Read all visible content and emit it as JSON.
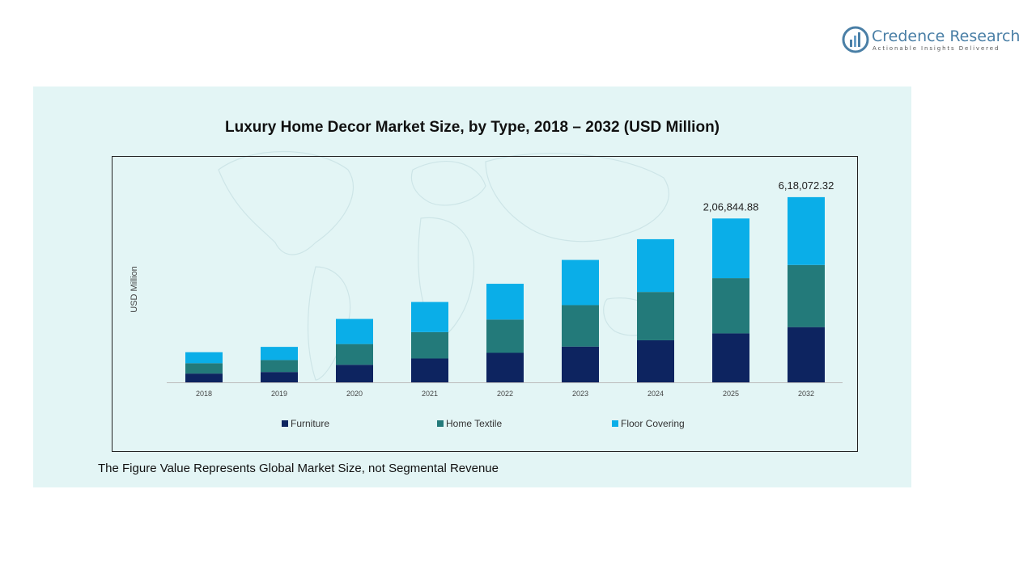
{
  "brand": {
    "name": "Credence Research",
    "tagline": "Actionable Insights Delivered",
    "color": "#4a7fa6"
  },
  "footnote": "The Figure Value Represents Global Market Size, not Segmental Revenue",
  "colors": {
    "panel_bg": "#e3f5f5",
    "furniture": "#0d2460",
    "home_textile": "#237a7a",
    "floor_covering": "#0aaee8"
  },
  "chart_data": {
    "type": "bar",
    "stacked": true,
    "title": "Luxury Home Decor Market Size, by Type, 2018 – 2032 (USD Million)",
    "xlabel": "",
    "ylabel": "USD Million",
    "categories": [
      "2018",
      "2019",
      "2020",
      "2021",
      "2022",
      "2023",
      "2024",
      "2025",
      "2032"
    ],
    "series": [
      {
        "name": "Furniture",
        "color": "#0d2460",
        "values": [
          14000,
          16500,
          28000,
          38000,
          47000,
          57000,
          67000,
          78000,
          88000
        ]
      },
      {
        "name": "Home Textile",
        "color": "#237a7a",
        "values": [
          16500,
          19000,
          33000,
          42000,
          53000,
          66000,
          77000,
          88000,
          99000
        ]
      },
      {
        "name": "Floor Covering",
        "color": "#0aaee8",
        "values": [
          17500,
          21000,
          40000,
          48000,
          57000,
          72000,
          84000,
          95000,
          108000
        ]
      }
    ],
    "data_labels": [
      {
        "category": "2025",
        "text": "2,06,844.88"
      },
      {
        "category": "2032",
        "text": "6,18,072.32"
      }
    ],
    "ylim": [
      0,
      300000
    ],
    "grid": false,
    "legend_position": "bottom"
  }
}
